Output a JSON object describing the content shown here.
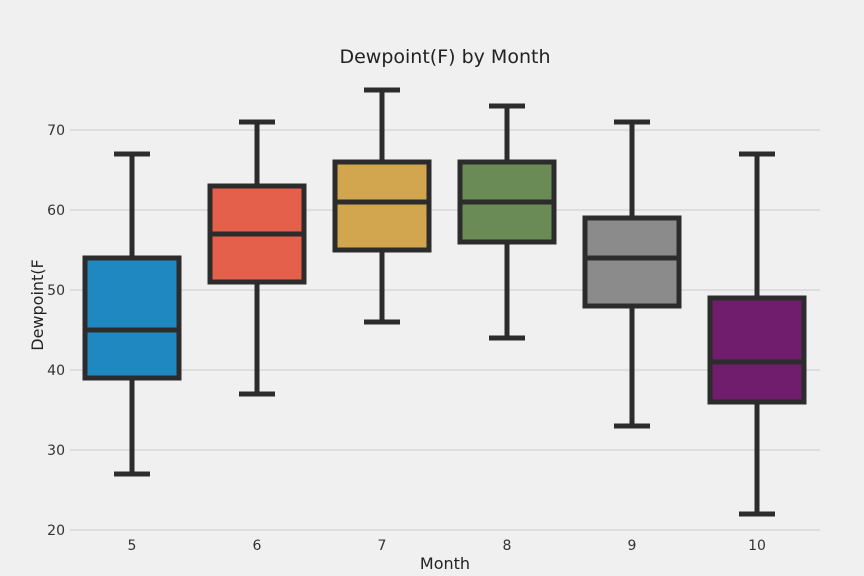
{
  "chart_data": {
    "type": "box",
    "title": "Dewpoint(F) by Month",
    "xlabel": "Month",
    "ylabel": "Dewpoint(F",
    "ylim": [
      20,
      75
    ],
    "yticks": [
      20,
      30,
      40,
      50,
      60,
      70
    ],
    "grid": true,
    "categories": [
      "5",
      "6",
      "7",
      "8",
      "9",
      "10"
    ],
    "boxes": [
      {
        "category": "5",
        "whisker_low": 27,
        "q1": 39,
        "median": 45,
        "q3": 54,
        "whisker_high": 67,
        "color": "#1f88c0"
      },
      {
        "category": "6",
        "whisker_low": 37,
        "q1": 51,
        "median": 57,
        "q3": 63,
        "whisker_high": 71,
        "color": "#e5604a"
      },
      {
        "category": "7",
        "whisker_low": 46,
        "q1": 55,
        "median": 61,
        "q3": 66,
        "whisker_high": 75,
        "color": "#d1a64e"
      },
      {
        "category": "8",
        "whisker_low": 44,
        "q1": 56,
        "median": 61,
        "q3": 66,
        "whisker_high": 73,
        "color": "#6b8b56"
      },
      {
        "category": "9",
        "whisker_low": 33,
        "q1": 48,
        "median": 54,
        "q3": 59,
        "whisker_high": 71,
        "color": "#8b8b8b"
      },
      {
        "category": "10",
        "whisker_low": 22,
        "q1": 36,
        "median": 41,
        "q3": 49,
        "whisker_high": 67,
        "color": "#711d6e"
      }
    ]
  }
}
